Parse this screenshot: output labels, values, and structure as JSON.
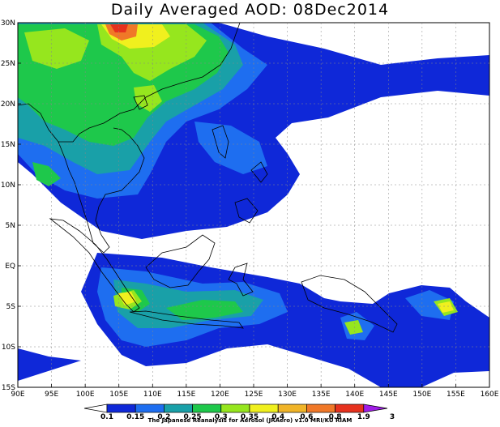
{
  "title": "Daily Averaged AOD: 08Dec2014",
  "lon_labels": [
    "90E",
    "95E",
    "100E",
    "105E",
    "110E",
    "115E",
    "120E",
    "125E",
    "130E",
    "135E",
    "140E",
    "145E",
    "150E",
    "155E",
    "160E"
  ],
  "lat_labels": [
    "30N",
    "25N",
    "20N",
    "15N",
    "10N",
    "5N",
    "EQ",
    "5S",
    "10S",
    "15S"
  ],
  "colorbar": {
    "levels": [
      "0.1",
      "0.15",
      "0.2",
      "0.25",
      "0.3",
      "0.35",
      "0.4",
      "0.6",
      "0.8",
      "1.9",
      "3"
    ],
    "colors": [
      "#0f28d8",
      "#1e6ef0",
      "#19a0a8",
      "#1ec84b",
      "#96e61e",
      "#f0f01e",
      "#f0b428",
      "#f07828",
      "#e6321e",
      "#a01ee6"
    ]
  },
  "credit": "The Japanese Reanalysis for Aerosol (JRAero) v1.0 MRI/KU RIAM"
}
